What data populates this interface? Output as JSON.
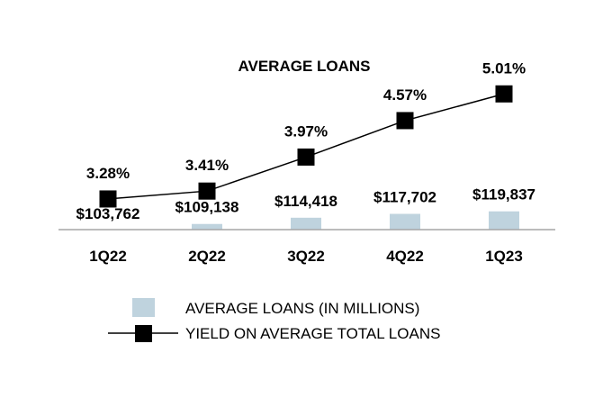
{
  "chart_data": {
    "type": "bar",
    "title": "AVERAGE LOANS",
    "categories": [
      "1Q22",
      "2Q22",
      "3Q22",
      "4Q22",
      "1Q23"
    ],
    "series": [
      {
        "name": "AVERAGE LOANS (IN MILLIONS)",
        "type": "bar",
        "values": [
          103762,
          109138,
          114418,
          117702,
          119837
        ],
        "labels": [
          "$103,762",
          "$109,138",
          "$114,418",
          "$117,702",
          "$119,837"
        ],
        "color": "#bfd3de"
      },
      {
        "name": "YIELD ON AVERAGE TOTAL LOANS",
        "type": "line",
        "values": [
          3.28,
          3.41,
          3.97,
          4.57,
          5.01
        ],
        "labels": [
          "3.28%",
          "3.41%",
          "3.97%",
          "4.57%",
          "5.01%"
        ],
        "color": "#000000"
      }
    ],
    "grid": false,
    "legend_position": "bottom"
  }
}
